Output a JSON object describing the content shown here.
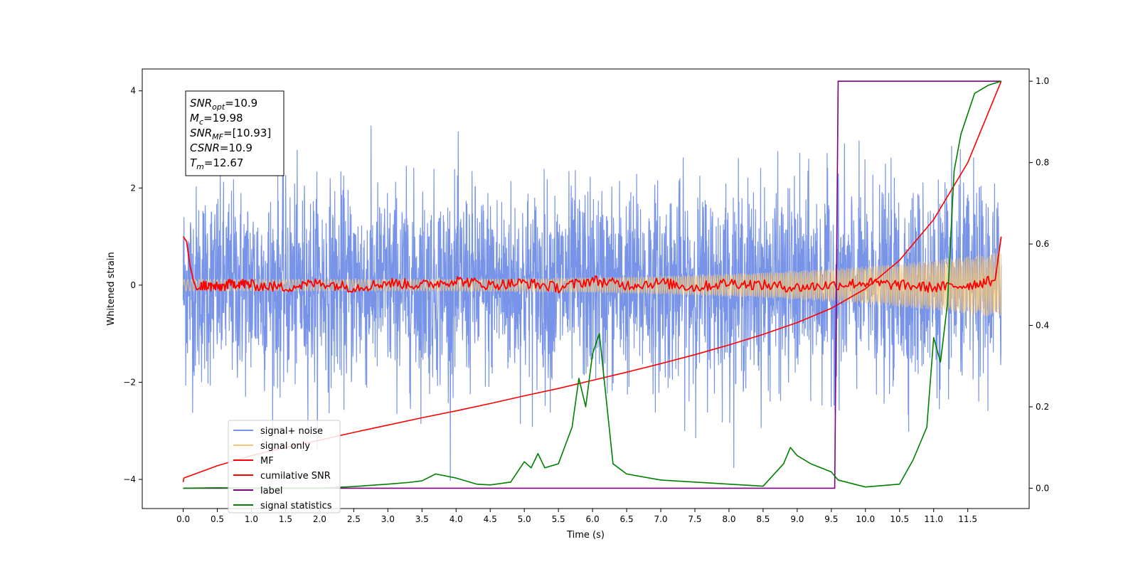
{
  "chart_data": {
    "type": "line",
    "xlabel": "Time (s)",
    "ylabel": "Whitened strain",
    "xlim": [
      -0.6,
      12.4
    ],
    "ylim": [
      -4.6,
      4.45
    ],
    "y2lim": [
      -0.05,
      1.03
    ],
    "x_ticks": [
      "0.0",
      "0.5",
      "1.0",
      "1.5",
      "2.0",
      "2.5",
      "3.0",
      "3.5",
      "4.0",
      "4.5",
      "5.0",
      "5.5",
      "6.0",
      "6.5",
      "7.0",
      "7.5",
      "8.0",
      "8.5",
      "9.0",
      "9.5",
      "10.0",
      "10.5",
      "11.0",
      "11.5"
    ],
    "y_ticks": [
      "4",
      "2",
      "0",
      "−2",
      "−4"
    ],
    "y2_ticks": [
      "1.0",
      "0.8",
      "0.6",
      "0.4",
      "0.2",
      "0.0"
    ],
    "grid": false,
    "annotation": {
      "lines": [
        {
          "main": "SNR",
          "sub": "opt",
          "rest": "=10.9"
        },
        {
          "main": "M",
          "sub": "c",
          "rest": "=19.98"
        },
        {
          "main": "SNR",
          "sub": "MF",
          "rest": "=[10.93]"
        },
        {
          "main": "CSNR",
          "sub": "",
          "rest": "=10.9"
        },
        {
          "main": "T",
          "sub": "m",
          "rest": "=12.67"
        }
      ]
    },
    "legend": {
      "placement": "lower-left",
      "entries": [
        {
          "label": "signal+ noise",
          "color": "#7894e8"
        },
        {
          "label": "signal only",
          "color": "#f5c77a"
        },
        {
          "label": "MF",
          "color": "#ff0000"
        },
        {
          "label": "cumilative SNR",
          "color": "#ff0000"
        },
        {
          "label": "label",
          "color": "#800080"
        },
        {
          "label": "signal statistics",
          "color": "#008000"
        }
      ]
    },
    "series": [
      {
        "name": "signal+ noise",
        "axis": "left",
        "color": "#7894e8",
        "kind": "noise",
        "x_range": [
          0.0,
          11.99
        ],
        "sigma": 1.0
      },
      {
        "name": "signal only",
        "axis": "left",
        "color": "#f5c77a",
        "kind": "chirp",
        "x_range": [
          0.0,
          11.99
        ]
      },
      {
        "name": "MF",
        "axis": "left",
        "color": "#ff0000",
        "x": [
          0.0,
          0.05,
          0.1,
          0.15,
          0.2,
          0.3,
          0.5,
          0.8,
          1.0,
          1.5,
          2.0,
          2.5,
          3.0,
          3.5,
          4.0,
          4.5,
          5.0,
          5.5,
          6.0,
          6.5,
          7.0,
          7.5,
          8.0,
          8.5,
          9.0,
          9.5,
          10.0,
          10.5,
          11.0,
          11.5,
          11.9,
          11.95,
          11.99
        ],
        "values": [
          1.0,
          0.9,
          0.4,
          0.1,
          -0.1,
          0.0,
          -0.05,
          0.05,
          0.0,
          -0.05,
          0.05,
          -0.05,
          0.05,
          0.0,
          0.1,
          0.0,
          0.05,
          -0.05,
          0.1,
          0.0,
          0.05,
          -0.05,
          0.05,
          0.0,
          -0.05,
          0.0,
          0.05,
          0.0,
          -0.05,
          0.0,
          0.1,
          0.6,
          1.0
        ]
      },
      {
        "name": "cumilative SNR",
        "axis": "right",
        "color": "#ff0000",
        "x": [
          0.0,
          0.01,
          0.5,
          1.0,
          1.5,
          2.0,
          2.5,
          3.0,
          3.5,
          4.0,
          4.5,
          5.0,
          5.5,
          6.0,
          6.5,
          7.0,
          7.5,
          8.0,
          8.5,
          9.0,
          9.5,
          10.0,
          10.5,
          11.0,
          11.5,
          11.99
        ],
        "values": [
          0.015,
          0.025,
          0.055,
          0.08,
          0.1,
          0.118,
          0.137,
          0.155,
          0.173,
          0.19,
          0.208,
          0.227,
          0.245,
          0.265,
          0.285,
          0.306,
          0.328,
          0.352,
          0.378,
          0.407,
          0.442,
          0.49,
          0.56,
          0.66,
          0.8,
          1.0
        ]
      },
      {
        "name": "label",
        "axis": "right",
        "color": "#800080",
        "x": [
          0.0,
          9.55,
          9.6,
          11.99
        ],
        "values": [
          0.0,
          0.0,
          1.0,
          1.0
        ]
      },
      {
        "name": "signal statistics",
        "axis": "right",
        "color": "#008000",
        "x": [
          0.0,
          0.5,
          1.0,
          1.5,
          2.0,
          2.5,
          3.0,
          3.3,
          3.5,
          3.7,
          4.0,
          4.3,
          4.5,
          4.8,
          5.0,
          5.1,
          5.2,
          5.3,
          5.5,
          5.7,
          5.8,
          5.9,
          6.0,
          6.1,
          6.2,
          6.3,
          6.5,
          7.0,
          7.5,
          8.0,
          8.5,
          8.8,
          8.9,
          9.0,
          9.2,
          9.5,
          9.6,
          10.0,
          10.5,
          10.7,
          10.9,
          11.0,
          11.1,
          11.2,
          11.3,
          11.4,
          11.6,
          11.8,
          11.99
        ],
        "values": [
          0.0,
          0.001,
          0.0,
          0.0,
          0.0,
          0.004,
          0.01,
          0.014,
          0.018,
          0.035,
          0.025,
          0.01,
          0.008,
          0.015,
          0.065,
          0.05,
          0.085,
          0.05,
          0.06,
          0.15,
          0.27,
          0.2,
          0.33,
          0.38,
          0.22,
          0.06,
          0.035,
          0.02,
          0.015,
          0.01,
          0.005,
          0.06,
          0.1,
          0.08,
          0.06,
          0.04,
          0.02,
          0.003,
          0.01,
          0.07,
          0.15,
          0.37,
          0.31,
          0.45,
          0.78,
          0.87,
          0.97,
          0.99,
          1.0
        ]
      }
    ]
  }
}
